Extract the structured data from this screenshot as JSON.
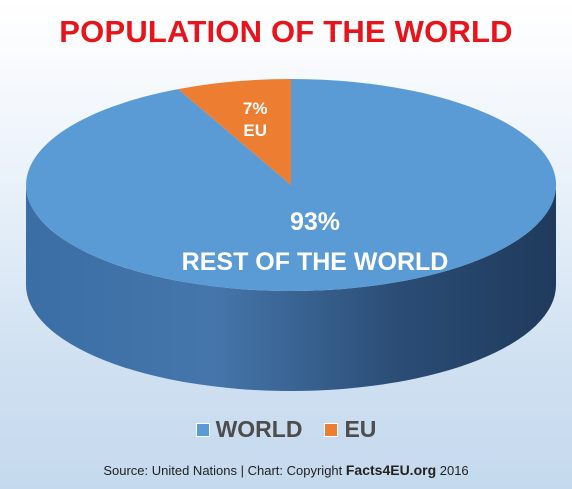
{
  "chart_data": {
    "type": "pie",
    "title": "POPULATION OF THE WORLD",
    "slices": [
      {
        "label": "WORLD",
        "value": 93,
        "value_text": "93%",
        "caption": "REST OF THE WORLD",
        "color": "#5b9bd5"
      },
      {
        "label": "EU",
        "value": 7,
        "value_text": "7%",
        "caption": "EU",
        "color": "#ed7d31"
      }
    ],
    "legend": [
      "WORLD",
      "EU"
    ],
    "legend_position": "bottom",
    "style": "3d"
  },
  "source": {
    "prefix": "Source: United Nations | Chart: Copyright ",
    "brand": "Facts4EU.org",
    "suffix": " 2016"
  }
}
